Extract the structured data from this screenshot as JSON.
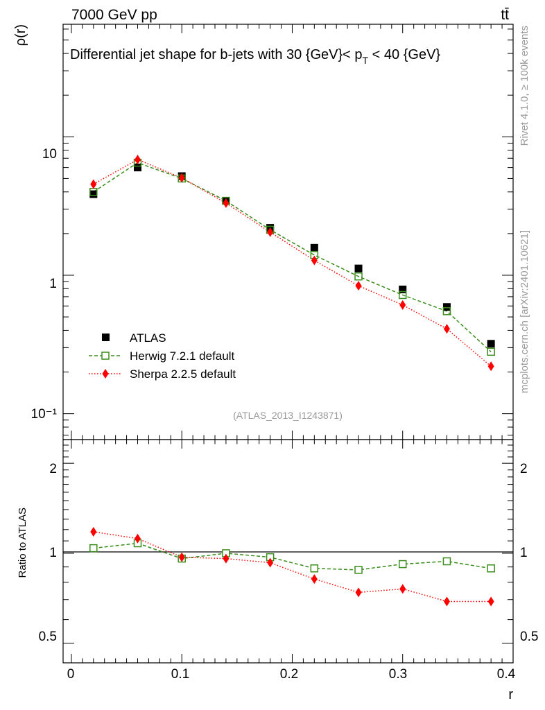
{
  "header": {
    "left": "7000 GeV pp",
    "right": "tt̄"
  },
  "side": {
    "rivet": "Rivet 4.1.0, ≥ 100k events",
    "mcplots": "mcplots.cern.ch [arXiv:2401.10621]"
  },
  "chart_data": {
    "type": "scatter",
    "title": "Differential jet shape for b-jets with 30 {GeV}< p_T < 40 {GeV}",
    "title_parts": {
      "before": "Differential jet shape for b-jets with 30 {GeV}< p",
      "sub": "T",
      "after": " < 40 {GeV}"
    },
    "watermark": "(ATLAS_2013_I1243871)",
    "xlabel": "r",
    "ylabel": "ρ(r)",
    "ratio_ylabel": "Ratio to ATLAS",
    "xlim": [
      -0.0075,
      0.4
    ],
    "ylim": [
      0.065,
      65
    ],
    "yscale": "log",
    "ratio_ylim": [
      0.43,
      2.4
    ],
    "ratio_yscale": "log",
    "x_ticks": [
      "0",
      "0.1",
      "0.2",
      "0.3",
      "0.4"
    ],
    "y_ticks": [
      "10⁻¹",
      "1",
      "10"
    ],
    "ratio_ticks": [
      "0.5",
      "1",
      "2"
    ],
    "x": [
      0.02,
      0.06,
      0.1,
      0.14,
      0.18,
      0.22,
      0.26,
      0.3,
      0.34,
      0.38
    ],
    "series": [
      {
        "name": "ATLAS",
        "color": "#000000",
        "values": [
          3.85,
          6.0,
          5.2,
          3.45,
          2.2,
          1.58,
          1.12,
          0.79,
          0.59,
          0.32
        ]
      },
      {
        "name": "Herwig 7.2.1 default",
        "color": "#3a8d1c",
        "values": [
          4.0,
          6.5,
          5.0,
          3.45,
          2.13,
          1.4,
          0.98,
          0.72,
          0.55,
          0.28
        ],
        "ratio": [
          1.04,
          1.08,
          0.96,
          1.0,
          0.97,
          0.89,
          0.88,
          0.92,
          0.94,
          0.89
        ]
      },
      {
        "name": "Sherpa 2.2.5 default",
        "color": "#ff0000",
        "values": [
          4.55,
          6.85,
          5.05,
          3.32,
          2.05,
          1.28,
          0.84,
          0.61,
          0.41,
          0.22
        ],
        "ratio": [
          1.18,
          1.12,
          0.97,
          0.96,
          0.93,
          0.82,
          0.74,
          0.76,
          0.69,
          0.69
        ]
      }
    ]
  }
}
